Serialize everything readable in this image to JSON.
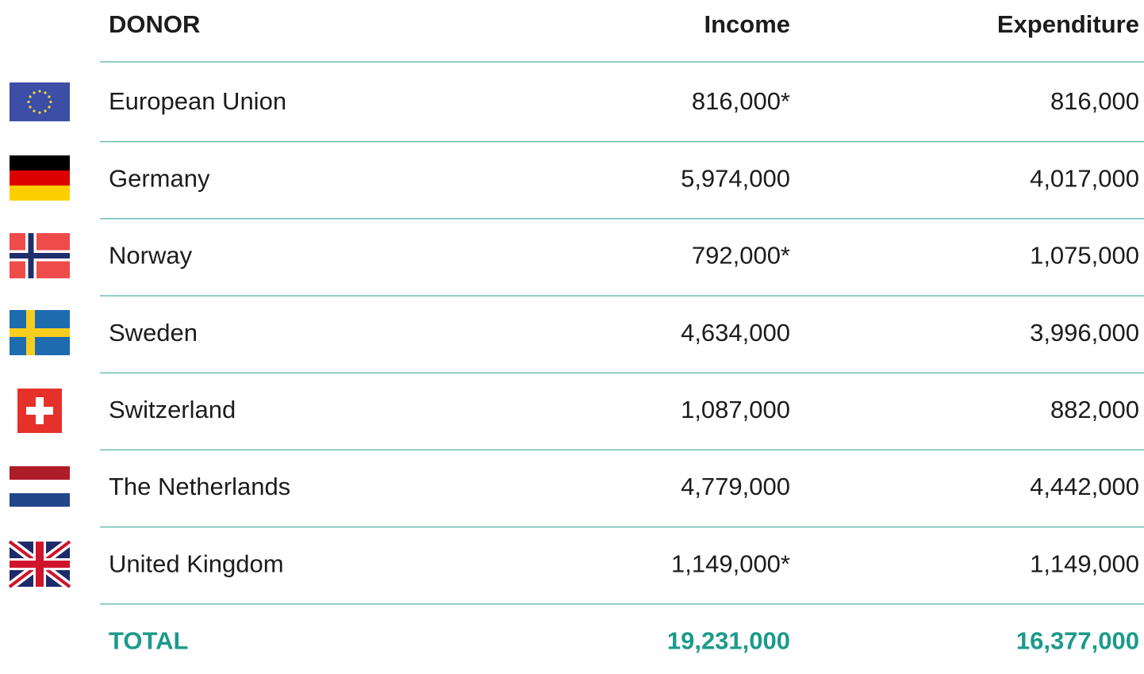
{
  "table": {
    "header": [
      "DONOR",
      "Income",
      "Expenditure"
    ],
    "rows": [
      [
        "European Union",
        "816,000*",
        "816,000"
      ],
      [
        "Germany",
        "5,974,000",
        "4,017,000"
      ],
      [
        "Norway",
        "792,000*",
        "1,075,000"
      ],
      [
        "Sweden",
        "4,634,000",
        "3,996,000"
      ],
      [
        "Switzerland",
        "1,087,000",
        "882,000"
      ],
      [
        "The Netherlands",
        "4,779,000",
        "4,442,000"
      ],
      [
        "United Kingdom",
        "1,149,000*",
        "1,149,000"
      ]
    ],
    "total": [
      "TOTAL",
      "19,231,000",
      "16,377,000"
    ]
  }
}
